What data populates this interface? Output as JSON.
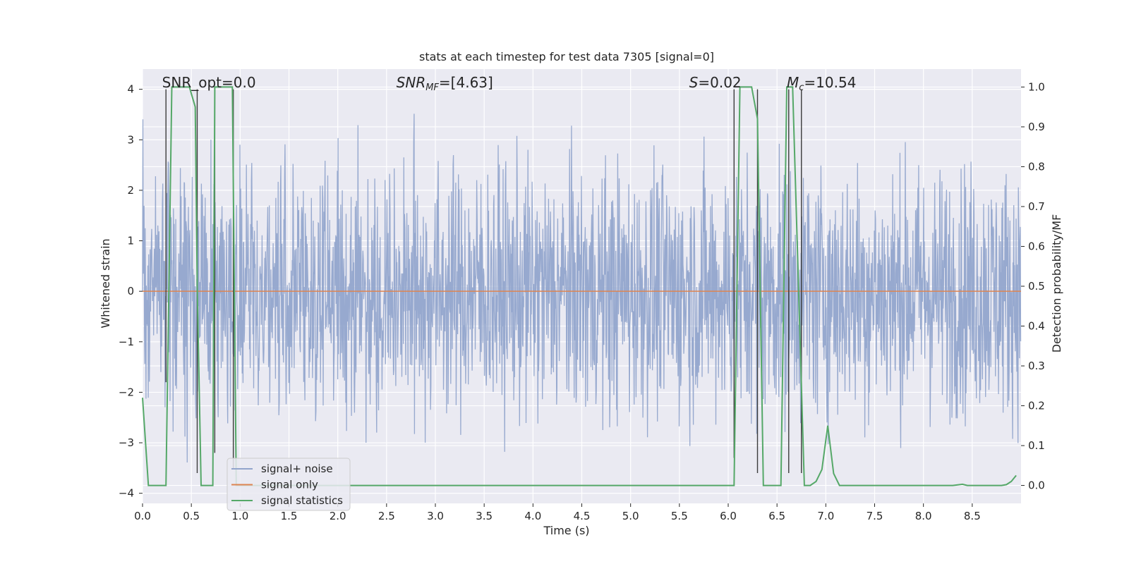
{
  "chart_data": {
    "type": "line",
    "title": "stats at each timestep for test data 7305 [signal=0]",
    "xlabel": "Time (s)",
    "ylabel_left": "Whitened strain",
    "ylabel_right": "Detection probability/MF",
    "xlim": [
      0,
      9.0
    ],
    "ylim_left": [
      -4.2,
      4.4
    ],
    "ylim_right": [
      -0.045,
      1.045
    ],
    "x_ticks": [
      0.0,
      0.5,
      1.0,
      1.5,
      2.0,
      2.5,
      3.0,
      3.5,
      4.0,
      4.5,
      5.0,
      5.5,
      6.0,
      6.5,
      7.0,
      7.5,
      8.0,
      8.5
    ],
    "x_tick_labels": [
      "0.0",
      "0.5",
      "1.0",
      "1.5",
      "2.0",
      "2.5",
      "3.0",
      "3.5",
      "4.0",
      "4.5",
      "5.0",
      "5.5",
      "6.0",
      "6.5",
      "7.0",
      "7.5",
      "8.0",
      "8.5"
    ],
    "y_left_ticks": [
      4,
      3,
      2,
      1,
      0,
      -1,
      -2,
      -3,
      -4
    ],
    "y_left_tick_labels": [
      "4",
      "3",
      "2",
      "1",
      "0",
      "−1",
      "−2",
      "−3",
      "−4"
    ],
    "y_right_ticks": [
      1.0,
      0.9,
      0.8,
      0.7,
      0.6,
      0.5,
      0.4,
      0.3,
      0.2,
      0.1,
      0.0
    ],
    "y_right_tick_labels": [
      "1.0",
      "0.9",
      "0.8",
      "0.7",
      "0.6",
      "0.5",
      "0.4",
      "0.3",
      "0.2",
      "0.1",
      "0.0"
    ],
    "grid": true,
    "annotations": [
      {
        "id": "snr-opt",
        "text": "SNR_opt=0.0",
        "x": 0.2
      },
      {
        "id": "snr-mf",
        "text": "=[4.63]",
        "math_main": "SNR",
        "math_sub": "MF",
        "x": 2.6
      },
      {
        "id": "s-stat",
        "text": "=0.02",
        "math_main": "S",
        "x": 5.6
      },
      {
        "id": "mc",
        "text": "=10.54",
        "math_main": "M",
        "math_sub": "c",
        "x": 6.6
      }
    ],
    "series": [
      {
        "name": "signal+ noise",
        "color": "#92a5cc",
        "kind": "noise",
        "typical_range": [
          -1.4,
          1.7
        ],
        "extreme_range": [
          -3.7,
          4.0
        ]
      },
      {
        "name": "signal only",
        "color": "#dd8452",
        "kind": "flat",
        "y": 0
      },
      {
        "name": "signal statistics",
        "color": "#55a868",
        "axis": "right",
        "x": [
          0.0,
          0.06,
          0.12,
          0.18,
          0.24,
          0.3,
          0.36,
          0.42,
          0.48,
          0.54,
          0.56,
          0.6,
          0.66,
          0.72,
          0.74,
          0.8,
          0.86,
          0.92,
          0.96,
          1.0,
          1.1,
          6.0,
          6.06,
          6.12,
          6.18,
          6.24,
          6.3,
          6.36,
          6.42,
          6.48,
          6.54,
          6.6,
          6.66,
          6.72,
          6.78,
          6.84,
          6.9,
          6.96,
          7.02,
          7.08,
          7.14,
          7.2,
          7.5,
          8.3,
          8.4,
          8.45,
          8.5,
          8.8,
          8.85,
          8.9,
          8.95
        ],
        "y": [
          0.22,
          0.0,
          0.0,
          0.0,
          0.0,
          1.0,
          1.0,
          1.0,
          1.0,
          0.95,
          0.5,
          0.0,
          0.0,
          0.0,
          1.0,
          1.0,
          1.0,
          1.0,
          0.0,
          0.0,
          0.0,
          0.0,
          0.0,
          1.0,
          1.0,
          1.0,
          0.92,
          0.0,
          0.0,
          0.0,
          0.0,
          1.0,
          1.0,
          0.5,
          0.0,
          0.0,
          0.01,
          0.04,
          0.15,
          0.03,
          0.0,
          0.0,
          0.0,
          0.0,
          0.003,
          0.0,
          0.0,
          0.0,
          0.002,
          0.01,
          0.025
        ]
      }
    ],
    "vlines": [
      {
        "x": 0.24,
        "y_from": -1.8,
        "y_to": 4.0
      },
      {
        "x": 0.56,
        "y_from": -3.6,
        "y_to": 4.0
      },
      {
        "x": 0.74,
        "y_from": -3.2,
        "y_to": 4.0
      },
      {
        "x": 0.93,
        "y_from": -3.5,
        "y_to": 4.0
      },
      {
        "x": 6.06,
        "y_from": -3.3,
        "y_to": 4.0
      },
      {
        "x": 6.3,
        "y_from": -3.6,
        "y_to": 4.0
      },
      {
        "x": 6.62,
        "y_from": -3.6,
        "y_to": 4.0
      },
      {
        "x": 6.75,
        "y_from": -3.6,
        "y_to": 4.0
      }
    ],
    "legend": {
      "placement": "lower-left",
      "entries": [
        {
          "label": "signal+ noise",
          "color": "#92a5cc"
        },
        {
          "label": "signal only",
          "color": "#dd8452"
        },
        {
          "label": "signal statistics",
          "color": "#55a868"
        }
      ]
    },
    "colors": {
      "plot_background": "#eaeaf2",
      "grid": "#ffffff",
      "text": "#262626"
    }
  }
}
